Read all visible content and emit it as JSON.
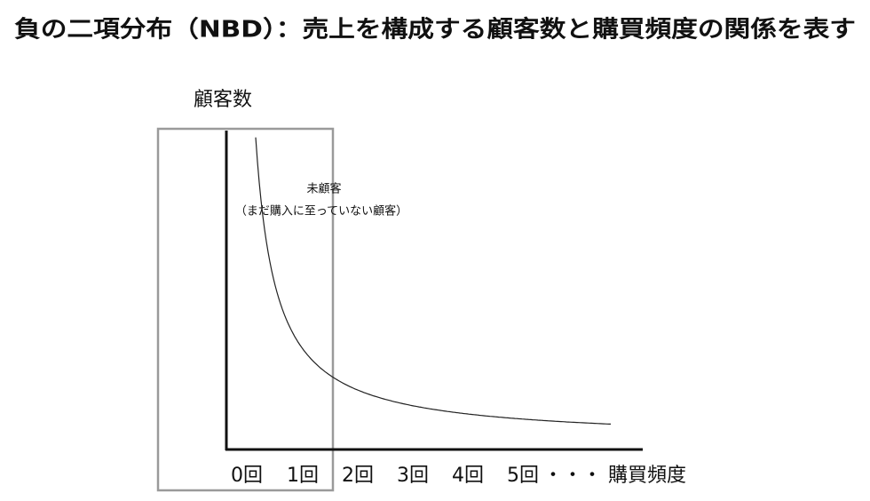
{
  "title": "負の二項分布（NBD）：売上を構成する顧客数と購買頻度の関係を表す",
  "y_axis_label": "顧客数",
  "annotation": {
    "title": "未顧客",
    "note": "（まだ購入に至っていない顧客）"
  },
  "x_axis": {
    "labels": [
      "0回",
      "1回",
      "2回",
      "3回",
      "4回",
      "5回",
      "・・・"
    ],
    "title": "購買頻度"
  }
}
